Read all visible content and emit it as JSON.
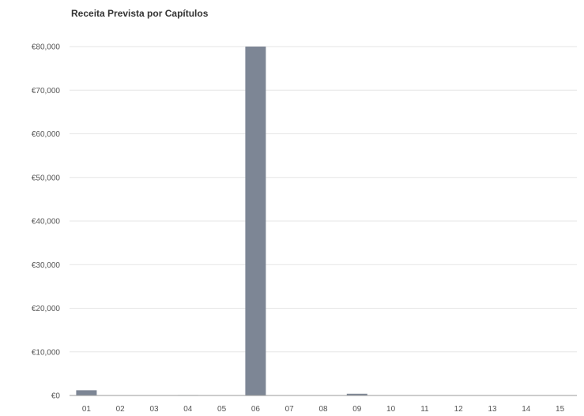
{
  "chart_data": {
    "type": "bar",
    "title": "Receita Prevista por Capítulos",
    "xlabel": "",
    "ylabel": "",
    "categories": [
      "01",
      "02",
      "03",
      "04",
      "05",
      "06",
      "07",
      "08",
      "09",
      "10",
      "11",
      "12",
      "13",
      "14",
      "15"
    ],
    "values": [
      1200,
      0,
      0,
      100,
      0,
      80000,
      0,
      0,
      400,
      0,
      0,
      0,
      0,
      0,
      0
    ],
    "ylim": [
      0,
      80000
    ],
    "yticks": [
      0,
      10000,
      20000,
      30000,
      40000,
      50000,
      60000,
      70000,
      80000
    ],
    "ytick_labels": [
      "€0",
      "€10,000",
      "€20,000",
      "€30,000",
      "€40,000",
      "€50,000",
      "€60,000",
      "€70,000",
      "€80,000"
    ],
    "grid": true,
    "legend": "none",
    "colors": {
      "bar": "#7d8695",
      "grid": "#e6e6e6",
      "axis": "#999999"
    }
  }
}
